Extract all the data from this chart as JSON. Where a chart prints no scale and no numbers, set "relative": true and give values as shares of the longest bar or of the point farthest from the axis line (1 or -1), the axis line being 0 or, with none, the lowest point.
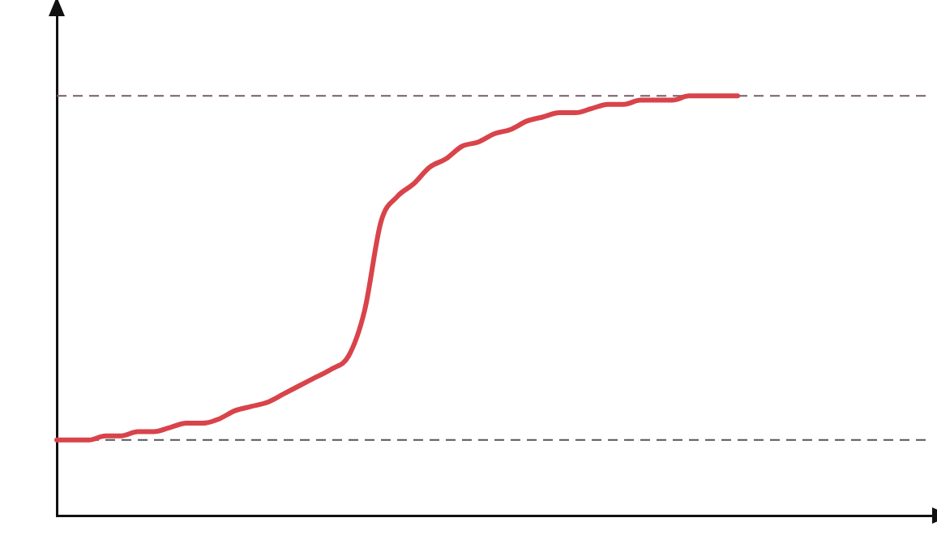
{
  "chart_data": {
    "type": "line",
    "relative": true,
    "categories": [
      null,
      null,
      null,
      null,
      null,
      null,
      null,
      null,
      null,
      null,
      null,
      null,
      null,
      null,
      null,
      null,
      null,
      null,
      null,
      null,
      null,
      null,
      null,
      null,
      null,
      null,
      null,
      null,
      null,
      null,
      null,
      null,
      null,
      null,
      null,
      null,
      null,
      null,
      null,
      null,
      null,
      null,
      null,
      null,
      null,
      null,
      null,
      null,
      null,
      null,
      null,
      null,
      null,
      null,
      null
    ],
    "series": [
      {
        "color": "#d9434a",
        "values": [
          0.18,
          0.18,
          0.18,
          0.19,
          0.19,
          0.2,
          0.2,
          0.21,
          0.22,
          0.22,
          0.23,
          0.25,
          0.26,
          0.27,
          0.29,
          0.31,
          0.33,
          0.35,
          0.38,
          0.49,
          0.7,
          0.76,
          0.79,
          0.83,
          0.85,
          0.88,
          0.89,
          0.91,
          0.92,
          0.94,
          0.95,
          0.96,
          0.96,
          0.97,
          0.98,
          0.98,
          0.99,
          0.99,
          0.99,
          1,
          1,
          1,
          1,
          null,
          null,
          null,
          null,
          null,
          null,
          null,
          null,
          null,
          null,
          null,
          null
        ]
      }
    ],
    "ref_lines": [
      {
        "axis": "y",
        "value": 1,
        "color": "#7a5a6a",
        "line_style": "dashed"
      },
      {
        "axis": "y",
        "value": 0.18,
        "color": "#555555",
        "line_style": "dashed"
      }
    ],
    "marker": "none",
    "line_style": "solid",
    "grid": false,
    "legend": false
  }
}
